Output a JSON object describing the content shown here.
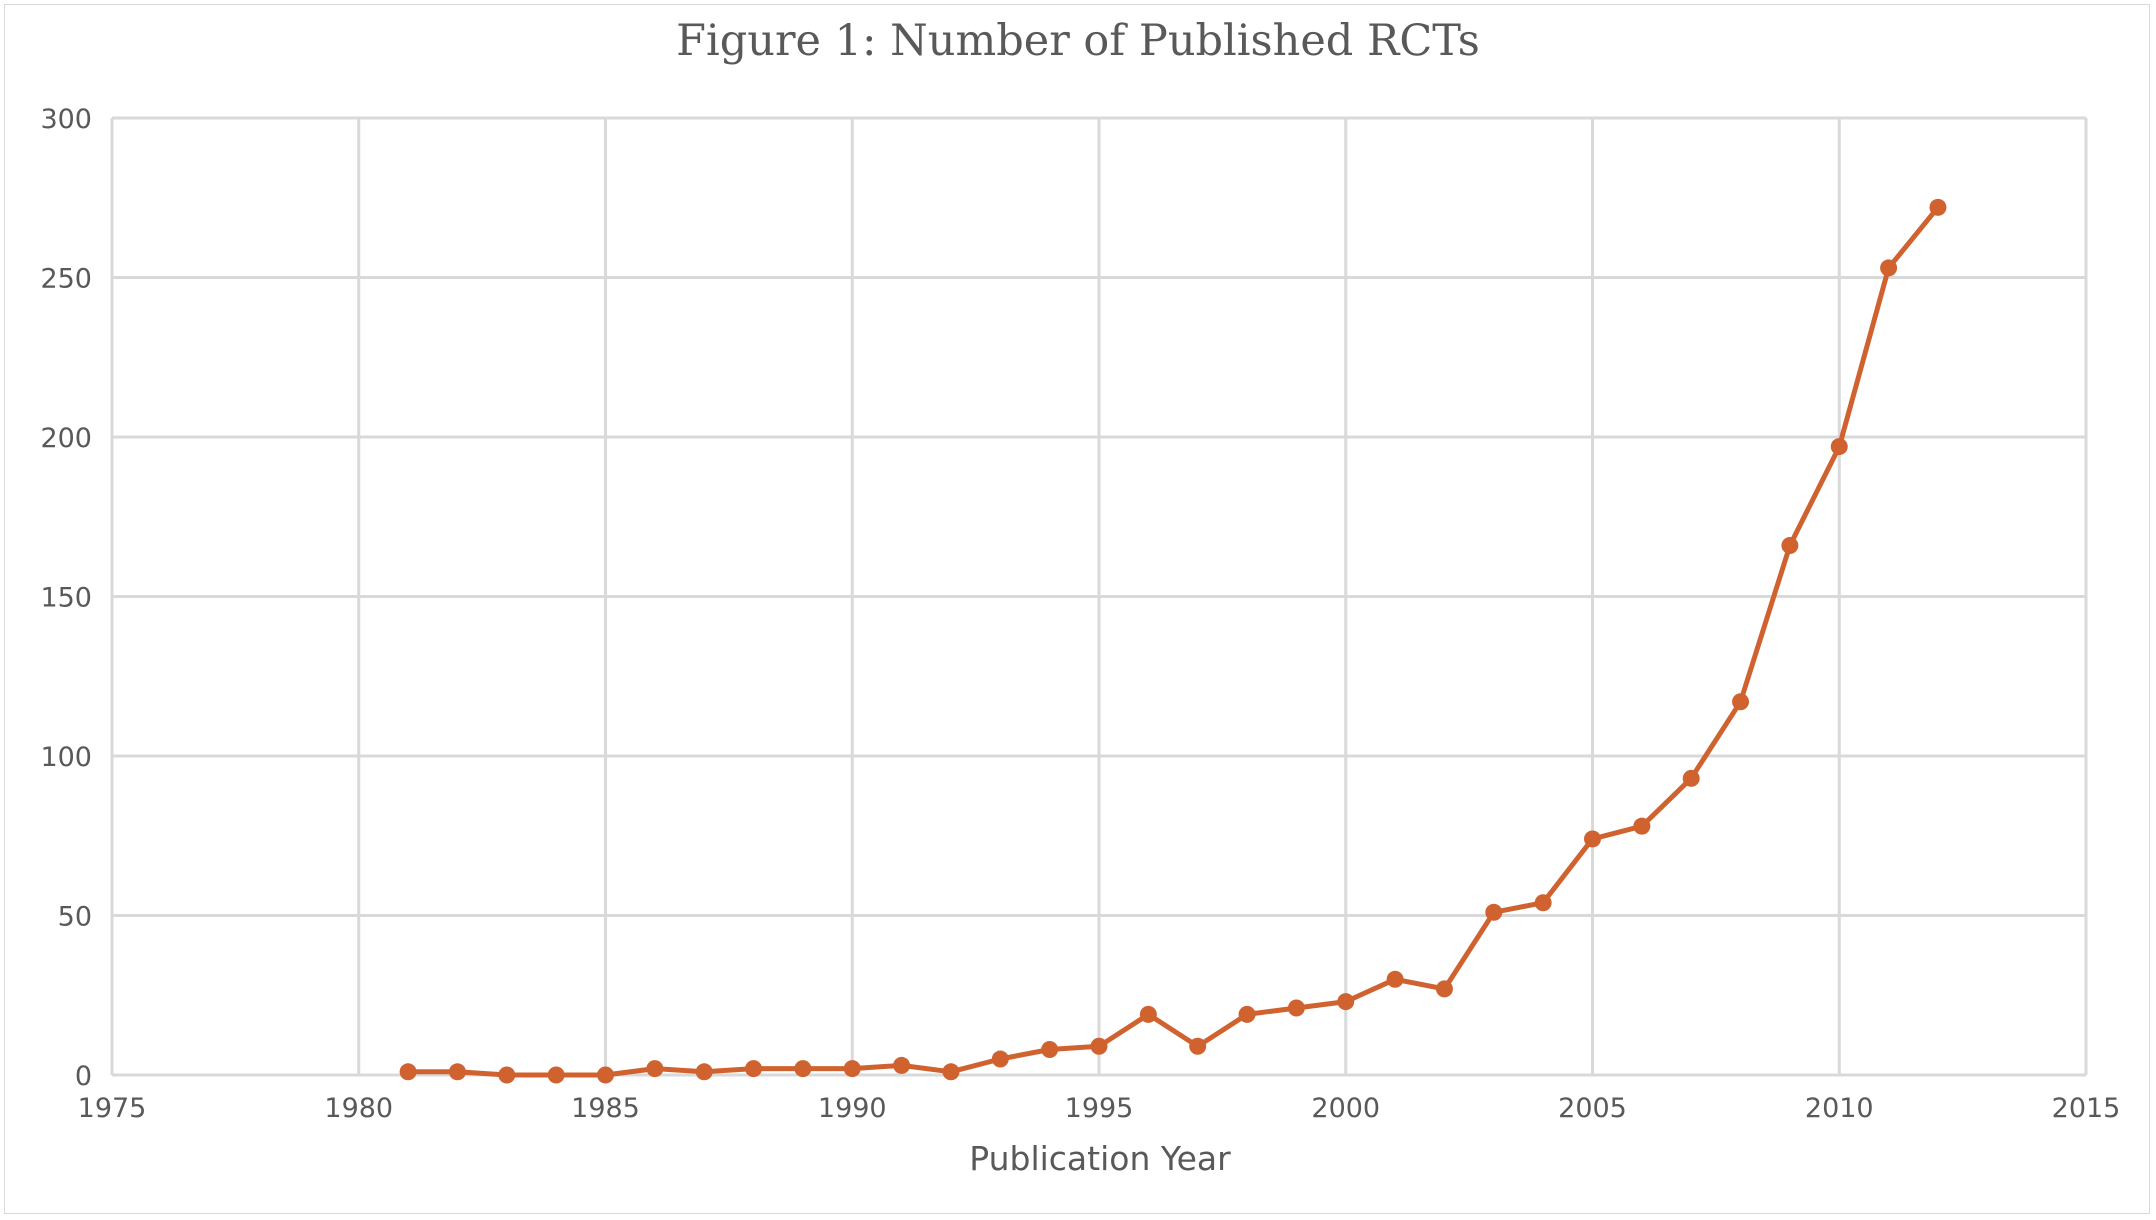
{
  "chart_data": {
    "type": "line",
    "title": "Figure 1: Number of Published RCTs",
    "xlabel": "Publication Year",
    "ylabel": "",
    "xlim": [
      1975,
      2015
    ],
    "ylim": [
      0,
      300
    ],
    "x_ticks": [
      1975,
      1980,
      1985,
      1990,
      1995,
      2000,
      2005,
      2010,
      2015
    ],
    "y_ticks": [
      0,
      50,
      100,
      150,
      200,
      250,
      300
    ],
    "grid": true,
    "legend": "none",
    "color": "#d0622f",
    "series": [
      {
        "x": [
          1981,
          1982,
          1983,
          1984,
          1985,
          1986,
          1987,
          1988,
          1989,
          1990,
          1991,
          1992,
          1993,
          1994,
          1995,
          1996,
          1997,
          1998,
          1999,
          2000,
          2001,
          2002,
          2003,
          2004,
          2005,
          2006,
          2007,
          2008,
          2009,
          2010,
          2011,
          2012
        ],
        "y": [
          1,
          1,
          0,
          0,
          0,
          2,
          1,
          2,
          2,
          2,
          3,
          1,
          5,
          8,
          9,
          19,
          9,
          19,
          21,
          23,
          30,
          27,
          51,
          54,
          74,
          78,
          93,
          117,
          166,
          197,
          253,
          272
        ]
      }
    ]
  }
}
